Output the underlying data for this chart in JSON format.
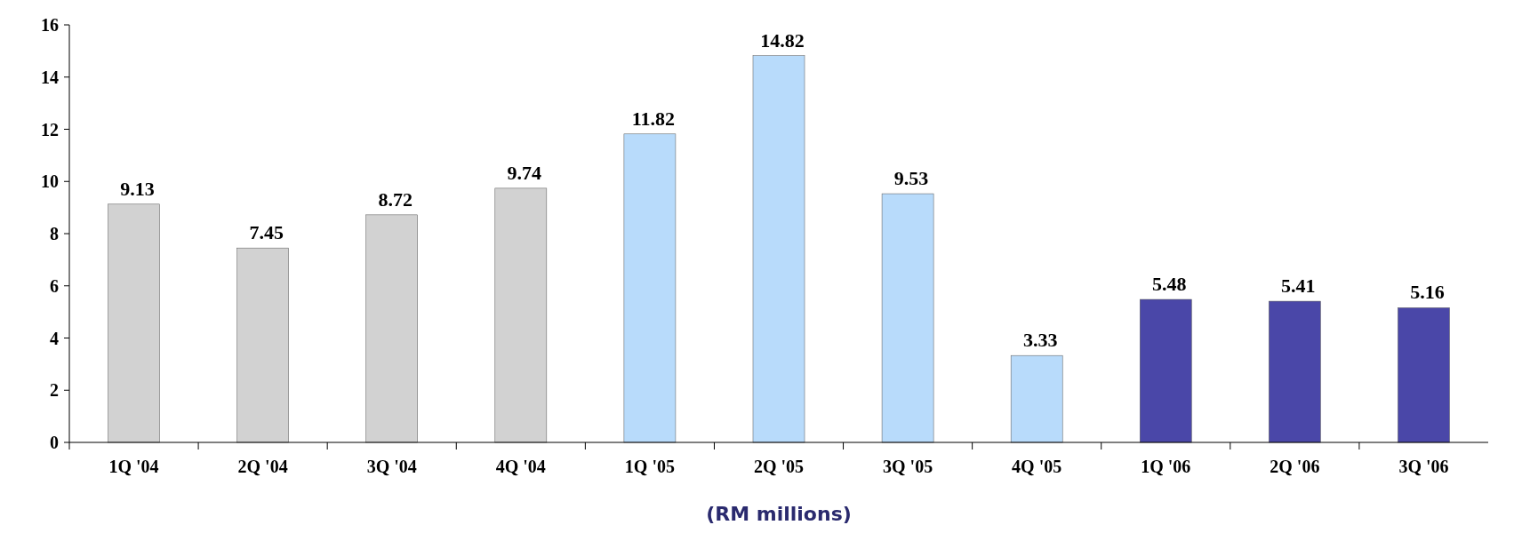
{
  "chart_data": {
    "type": "bar",
    "categories": [
      "1Q '04",
      "2Q '04",
      "3Q '04",
      "4Q '04",
      "1Q '05",
      "2Q '05",
      "3Q '05",
      "4Q '05",
      "1Q '06",
      "2Q '06",
      "3Q '06"
    ],
    "values": [
      9.13,
      7.45,
      8.72,
      9.74,
      11.82,
      14.82,
      9.53,
      3.33,
      5.48,
      5.41,
      5.16
    ],
    "colors": [
      "#d2d2d2",
      "#d2d2d2",
      "#d2d2d2",
      "#d2d2d2",
      "#b8dbfb",
      "#b8dbfb",
      "#b8dbfb",
      "#b8dbfb",
      "#4a47a8",
      "#4a47a8",
      "#4a47a8"
    ],
    "xlabel": "(RM millions)",
    "ylim": [
      0,
      16
    ],
    "yticks": [
      0,
      2,
      4,
      6,
      8,
      10,
      12,
      14,
      16
    ],
    "data_labels": true,
    "grid": false
  }
}
